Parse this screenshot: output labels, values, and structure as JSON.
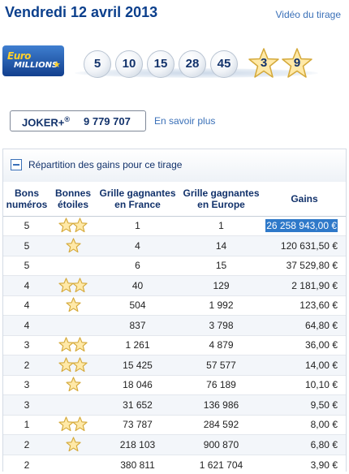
{
  "header": {
    "title": "Vendredi 12 avril 2013",
    "video_link": "Vidéo du tirage"
  },
  "logo": {
    "line1": "Euro",
    "line2": "MILLIONS"
  },
  "draw": {
    "numbers": [
      "5",
      "10",
      "15",
      "28",
      "45"
    ],
    "stars": [
      "3",
      "9"
    ]
  },
  "joker": {
    "label": "JOKER+",
    "mark": "®",
    "number": "9 779 707",
    "more_link": "En savoir plus"
  },
  "table": {
    "title": "Répartition des gains pour ce tirage",
    "headers": {
      "numbers": [
        "Bons",
        "numéros"
      ],
      "stars": [
        "Bonnes",
        "étoiles"
      ],
      "france": [
        "Grille gagnantes",
        "en France"
      ],
      "europe": [
        "Grille gagnantes",
        "en Europe"
      ],
      "gains": "Gains"
    },
    "rows": [
      {
        "numbers": "5",
        "stars": 2,
        "france": "1",
        "europe": "1",
        "gains": "26 258 943,00 €",
        "highlight": true
      },
      {
        "numbers": "5",
        "stars": 1,
        "france": "4",
        "europe": "14",
        "gains": "120 631,50 €"
      },
      {
        "numbers": "5",
        "stars": 0,
        "france": "6",
        "europe": "15",
        "gains": "37 529,80 €"
      },
      {
        "numbers": "4",
        "stars": 2,
        "france": "40",
        "europe": "129",
        "gains": "2 181,90 €"
      },
      {
        "numbers": "4",
        "stars": 1,
        "france": "504",
        "europe": "1 992",
        "gains": "123,60 €"
      },
      {
        "numbers": "4",
        "stars": 0,
        "france": "837",
        "europe": "3 798",
        "gains": "64,80 €"
      },
      {
        "numbers": "3",
        "stars": 2,
        "france": "1 261",
        "europe": "4 879",
        "gains": "36,00 €"
      },
      {
        "numbers": "2",
        "stars": 2,
        "france": "15 425",
        "europe": "57 577",
        "gains": "14,00 €"
      },
      {
        "numbers": "3",
        "stars": 1,
        "france": "18 046",
        "europe": "76 189",
        "gains": "10,10 €"
      },
      {
        "numbers": "3",
        "stars": 0,
        "france": "31 652",
        "europe": "136 986",
        "gains": "9,50 €"
      },
      {
        "numbers": "1",
        "stars": 2,
        "france": "73 787",
        "europe": "284 592",
        "gains": "8,00 €"
      },
      {
        "numbers": "2",
        "stars": 1,
        "france": "218 103",
        "europe": "900 870",
        "gains": "6,80 €"
      },
      {
        "numbers": "2",
        "stars": 0,
        "france": "380 811",
        "europe": "1 621 704",
        "gains": "3,90 €"
      }
    ]
  },
  "colors": {
    "title": "#0b3f8c",
    "link": "#3a70b8",
    "star_fill": "#ffe9a8",
    "star_stroke": "#d4a93a",
    "highlight": "#2f79c9"
  },
  "icons": {
    "collapse": "minus-square-icon",
    "star": "star-icon"
  }
}
